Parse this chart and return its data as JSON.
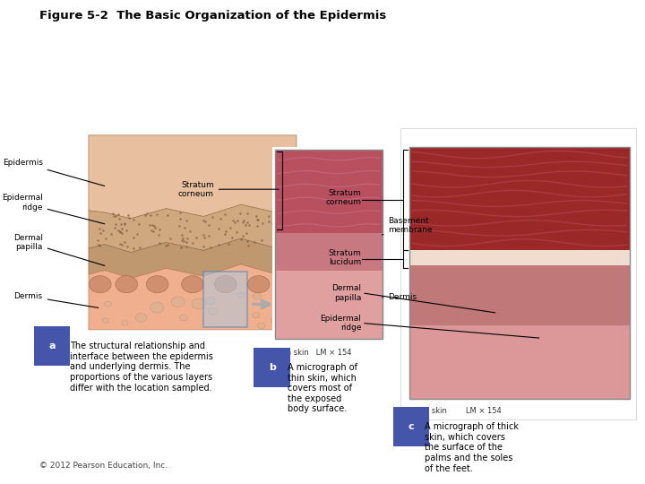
{
  "title": "Figure 5-2  The Basic Organization of the Epidermis",
  "title_fontsize": 9.5,
  "bg_color": "#ffffff",
  "copyright": "© 2012 Pearson Education, Inc.",
  "label_fontsize": 6.5,
  "caption_fontsize": 7.0,
  "diagram_a_caption": "The structural relationship and\ninterface between the epidermis\nand underlying dermis. The\nproportions of the various layers\ndiffer with the location sampled.",
  "diagram_b_caption": "A micrograph of\nthin skin, which\ncovers most of\nthe exposed\nbody surface.",
  "diagram_c_caption": "A micrograph of thick\nskin, which covers\nthe surface of the\npalms and the soles\nof the feet."
}
